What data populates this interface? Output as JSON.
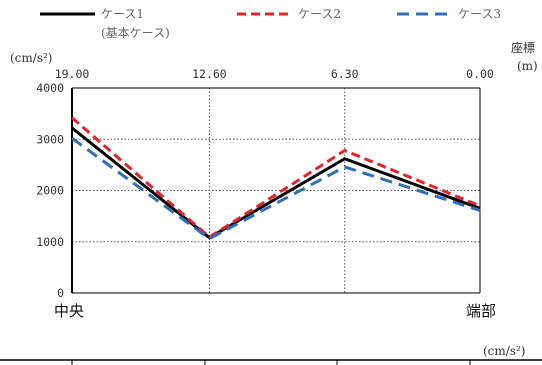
{
  "chart_data": {
    "type": "line",
    "legend": {
      "placement": "top",
      "entries": [
        "ケース1",
        "ケース2",
        "ケース3"
      ],
      "note": "(基本ケース)"
    },
    "y_unit": "(cm/s²)",
    "x_axis_title": "座標",
    "x_axis_unit": "(m)",
    "x_ticks": [
      "19.00",
      "12.60",
      "6.30",
      "0.00"
    ],
    "y_ticks": [
      "4000",
      "3000",
      "2000",
      "1000",
      "0"
    ],
    "ylim": [
      0,
      4000
    ],
    "grid": true,
    "end_labels": {
      "left": "中央",
      "right": "端部"
    },
    "bottom_unit": "(cm/s²)",
    "x": [
      19.0,
      12.6,
      6.3,
      0.0
    ],
    "series": [
      {
        "name": "ケース1",
        "color": "#000000",
        "dash": "solid",
        "values": [
          3220,
          1080,
          2620,
          1650
        ]
      },
      {
        "name": "ケース2",
        "color": "#e3242b",
        "dash": "dashed",
        "values": [
          3420,
          1090,
          2780,
          1700
        ]
      },
      {
        "name": "ケース3",
        "color": "#2e6fb7",
        "dash": "dashed",
        "values": [
          3020,
          1060,
          2460,
          1610
        ]
      }
    ]
  }
}
